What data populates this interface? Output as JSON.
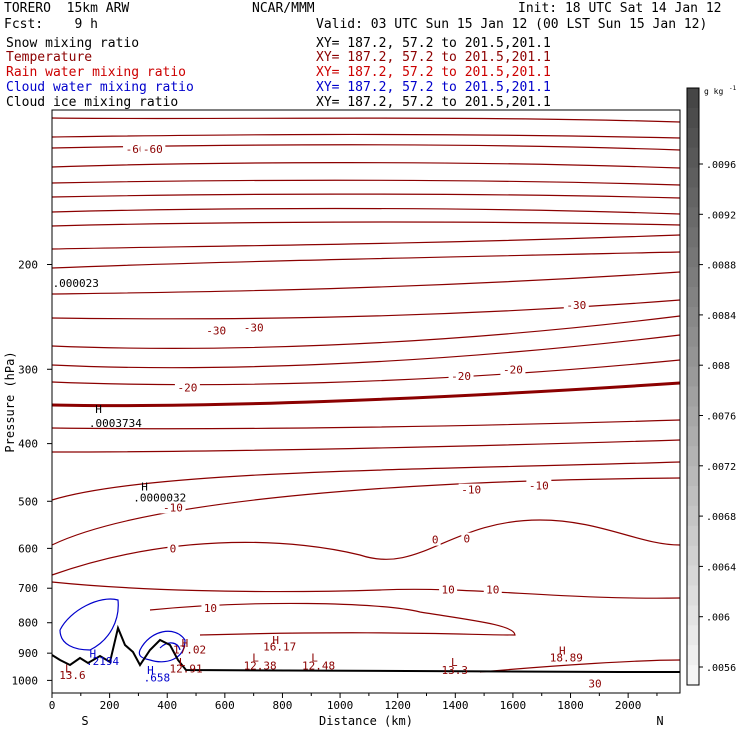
{
  "header": {
    "model": "TORERO  15km ARW",
    "org": "NCAR/MMM",
    "init": "Init: 18 UTC Sat 14 Jan 12",
    "fcst": "Fcst:    9 h",
    "valid": "Valid: 03 UTC Sun 15 Jan 12 (00 LST Sun 15 Jan 12)"
  },
  "fields": [
    {
      "name": "Snow mixing ratio",
      "color": "#000000",
      "xy": "XY= 187.2, 57.2 to 201.5,201.1"
    },
    {
      "name": "Temperature",
      "color": "#8b0000",
      "xy": "XY= 187.2, 57.2 to 201.5,201.1"
    },
    {
      "name": "Rain water mixing ratio",
      "color": "#cc0000",
      "xy": "XY= 187.2, 57.2 to 201.5,201.1"
    },
    {
      "name": "Cloud water mixing ratio",
      "color": "#0000cc",
      "xy": "XY= 187.2, 57.2 to 201.5,201.1"
    },
    {
      "name": "Cloud ice mixing ratio",
      "color": "#000000",
      "xy": "XY= 187.2, 57.2 to 201.5,201.1"
    }
  ],
  "axis": {
    "ylabel": "Pressure (hPa)",
    "xlabel": "Distance (km)",
    "left_end": "S",
    "right_end": "N"
  },
  "colorbar": {
    "unit": "g kg",
    "unit_exp": "-1",
    "ticks": [
      ".0096",
      ".0092",
      ".0088",
      ".0084",
      ".008",
      ".0076",
      ".0072",
      ".0068",
      ".0064",
      ".006",
      ".0056"
    ]
  },
  "chart_data": {
    "type": "contour",
    "x_ticks": [
      0,
      200,
      400,
      600,
      800,
      1000,
      1200,
      1400,
      1600,
      1800,
      2000
    ],
    "y_ticks": [
      200,
      300,
      400,
      500,
      600,
      700,
      800,
      900,
      1000
    ],
    "xlim": [
      0,
      2180
    ],
    "ylim": [
      1050,
      110
    ],
    "y_scale": "log",
    "temperature_labels": [
      {
        "text": "-60",
        "x": 290,
        "p": 128
      },
      {
        "text": "-60",
        "x": 350,
        "p": 128
      },
      {
        "text": "-30",
        "x": 570,
        "p": 258
      },
      {
        "text": "-30",
        "x": 700,
        "p": 255
      },
      {
        "text": "-30",
        "x": 1820,
        "p": 234
      },
      {
        "text": "-20",
        "x": 470,
        "p": 322
      },
      {
        "text": "-20",
        "x": 1420,
        "p": 308
      },
      {
        "text": "-20",
        "x": 1600,
        "p": 300
      },
      {
        "text": "-10",
        "x": 420,
        "p": 512
      },
      {
        "text": "-10",
        "x": 1455,
        "p": 478
      },
      {
        "text": "-10",
        "x": 1690,
        "p": 470
      },
      {
        "text": "0",
        "x": 420,
        "p": 600
      },
      {
        "text": "0",
        "x": 1330,
        "p": 580
      },
      {
        "text": "0",
        "x": 1440,
        "p": 578
      },
      {
        "text": "10",
        "x": 550,
        "p": 755
      },
      {
        "text": "10",
        "x": 1375,
        "p": 703
      },
      {
        "text": "10",
        "x": 1530,
        "p": 703
      },
      {
        "text": "30",
        "x": 1885,
        "p": 1012
      }
    ],
    "extrema": [
      {
        "text": "H",
        "x": 150,
        "p": 355,
        "color": "#000000"
      },
      {
        "text": ".0003734",
        "x": 128,
        "p": 375,
        "color": "#000000"
      },
      {
        "text": "H",
        "x": 310,
        "p": 480,
        "color": "#000000"
      },
      {
        "text": ".0000032",
        "x": 282,
        "p": 500,
        "color": "#000000"
      },
      {
        "text": ".000023",
        "x": 2,
        "p": 218,
        "color": "#000000"
      },
      {
        "text": "H",
        "x": 450,
        "p": 878,
        "color": "#8b0000"
      },
      {
        "text": "17.02",
        "x": 420,
        "p": 902,
        "color": "#8b0000"
      },
      {
        "text": "H",
        "x": 765,
        "p": 868,
        "color": "#8b0000"
      },
      {
        "text": "16.17",
        "x": 733,
        "p": 890,
        "color": "#8b0000"
      },
      {
        "text": "L",
        "x": 695,
        "p": 930,
        "color": "#8b0000"
      },
      {
        "text": "12.38",
        "x": 665,
        "p": 958,
        "color": "#8b0000"
      },
      {
        "text": "L",
        "x": 900,
        "p": 930,
        "color": "#8b0000"
      },
      {
        "text": "12.48",
        "x": 868,
        "p": 958,
        "color": "#8b0000"
      },
      {
        "text": "L",
        "x": 1385,
        "p": 945,
        "color": "#8b0000"
      },
      {
        "text": "13.3",
        "x": 1352,
        "p": 975,
        "color": "#8b0000"
      },
      {
        "text": "H",
        "x": 1760,
        "p": 905,
        "color": "#8b0000"
      },
      {
        "text": "18.89",
        "x": 1728,
        "p": 930,
        "color": "#8b0000"
      },
      {
        "text": "L",
        "x": 45,
        "p": 970,
        "color": "#8b0000"
      },
      {
        "text": "13.6",
        "x": 25,
        "p": 995,
        "color": "#8b0000"
      },
      {
        "text": "L",
        "x": 440,
        "p": 945,
        "color": "#8b0000"
      },
      {
        "text": "12.91",
        "x": 408,
        "p": 970,
        "color": "#8b0000"
      },
      {
        "text": "H",
        "x": 130,
        "p": 915,
        "color": "#0000cc"
      },
      {
        "text": ".2194",
        "x": 118,
        "p": 942,
        "color": "#0000cc"
      },
      {
        "text": "H",
        "x": 330,
        "p": 975,
        "color": "#0000cc"
      },
      {
        "text": ".658",
        "x": 318,
        "p": 1005,
        "color": "#0000cc"
      }
    ]
  }
}
